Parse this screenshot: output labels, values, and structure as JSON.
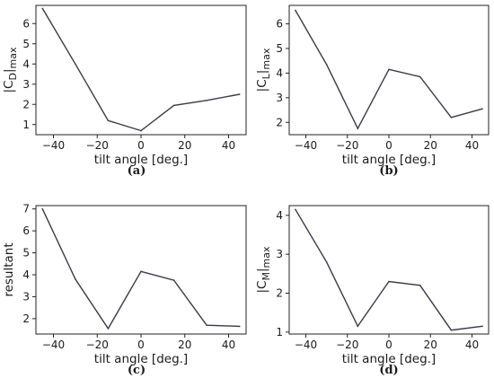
{
  "chart_data": [
    {
      "type": "line",
      "panel_label": "(a)",
      "xlabel": "tilt angle [deg.]",
      "ylabel": {
        "base": "|C",
        "sub": "D",
        "close": "|",
        "sub2": "max"
      },
      "x": [
        -45,
        -30,
        -15,
        0,
        15,
        30,
        45
      ],
      "values": [
        6.75,
        4.0,
        1.2,
        0.7,
        1.95,
        2.2,
        2.5
      ],
      "xlim": [
        -48,
        48
      ],
      "ylim": [
        0.5,
        6.9
      ],
      "xticks": [
        -40,
        -20,
        0,
        20,
        40
      ],
      "yticks": [
        1,
        2,
        3,
        4,
        5,
        6
      ],
      "color": "#3a3a48"
    },
    {
      "type": "line",
      "panel_label": "(b)",
      "xlabel": "tilt angle [deg.]",
      "ylabel": {
        "base": "|C",
        "sub": "L",
        "close": "|",
        "sub2": "max"
      },
      "x": [
        -45,
        -30,
        -15,
        0,
        15,
        30,
        45
      ],
      "values": [
        6.55,
        4.35,
        1.75,
        4.15,
        3.85,
        2.2,
        2.55
      ],
      "xlim": [
        -48,
        48
      ],
      "ylim": [
        1.5,
        6.75
      ],
      "xticks": [
        -40,
        -20,
        0,
        20,
        40
      ],
      "yticks": [
        2,
        3,
        4,
        5,
        6
      ],
      "color": "#3a3a48"
    },
    {
      "type": "line",
      "panel_label": "(c)",
      "xlabel": "tilt angle [deg.]",
      "ylabel": {
        "text": "resultant"
      },
      "x": [
        -45,
        -30,
        -15,
        0,
        15,
        30,
        45
      ],
      "values": [
        7.0,
        3.8,
        1.55,
        4.15,
        3.75,
        1.7,
        1.65
      ],
      "xlim": [
        -48,
        48
      ],
      "ylim": [
        1.3,
        7.15
      ],
      "xticks": [
        -40,
        -20,
        0,
        20,
        40
      ],
      "yticks": [
        2,
        3,
        4,
        5,
        6,
        7
      ],
      "color": "#3a3a48"
    },
    {
      "type": "line",
      "panel_label": "(d)",
      "xlabel": "tilt angle [deg.]",
      "ylabel": {
        "base": "|C",
        "sub": "M",
        "close": "|",
        "sub2": "max"
      },
      "x": [
        -45,
        -30,
        -15,
        0,
        15,
        30,
        45
      ],
      "values": [
        4.15,
        2.8,
        1.15,
        2.3,
        2.2,
        1.05,
        1.15
      ],
      "xlim": [
        -48,
        48
      ],
      "ylim": [
        0.95,
        4.25
      ],
      "xticks": [
        -40,
        -20,
        0,
        20,
        40
      ],
      "yticks": [
        1,
        2,
        3,
        4
      ],
      "color": "#3a3a48"
    }
  ]
}
